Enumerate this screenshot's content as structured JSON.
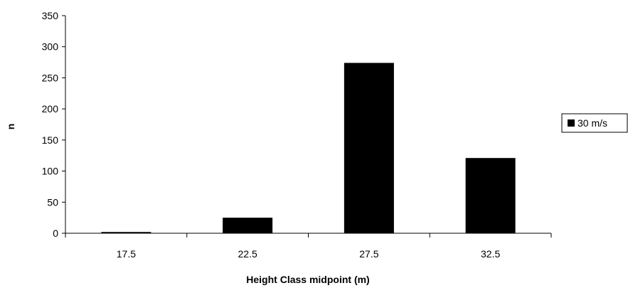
{
  "chart_data": {
    "type": "bar",
    "categories": [
      "17.5",
      "22.5",
      "27.5",
      "32.5"
    ],
    "series": [
      {
        "name": "30 m/s",
        "values": [
          2,
          25,
          274,
          121
        ],
        "color": "#000000"
      }
    ],
    "xlabel": "Height Class midpoint (m)",
    "ylabel": "n",
    "ylim": [
      0,
      350
    ],
    "yticks": [
      0,
      50,
      100,
      150,
      200,
      250,
      300,
      350
    ],
    "grid": false,
    "legend_position": "right"
  }
}
